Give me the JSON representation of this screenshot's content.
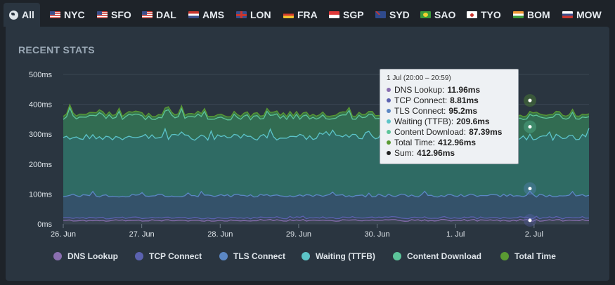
{
  "tabs": [
    {
      "label": "All",
      "icon": "globe-icon",
      "active": true
    },
    {
      "label": "NYC",
      "icon": "us-flag-icon"
    },
    {
      "label": "SFO",
      "icon": "us-flag-icon"
    },
    {
      "label": "DAL",
      "icon": "us-flag-icon"
    },
    {
      "label": "AMS",
      "icon": "nl-flag-icon"
    },
    {
      "label": "LON",
      "icon": "uk-flag-icon"
    },
    {
      "label": "FRA",
      "icon": "de-flag-icon"
    },
    {
      "label": "SGP",
      "icon": "sg-flag-icon"
    },
    {
      "label": "SYD",
      "icon": "au-flag-icon"
    },
    {
      "label": "SAO",
      "icon": "br-flag-icon"
    },
    {
      "label": "TYO",
      "icon": "jp-flag-icon"
    },
    {
      "label": "BOM",
      "icon": "in-flag-icon"
    },
    {
      "label": "MOW",
      "icon": "ru-flag-icon"
    }
  ],
  "section_title": "RECENT STATS",
  "tooltip": {
    "header": "1 Jul (20:00 – 20:59)",
    "rows": [
      {
        "label": "DNS Lookup:",
        "value": "11.96ms",
        "color": "#8a6fb0"
      },
      {
        "label": "TCP Connect:",
        "value": "8.81ms",
        "color": "#5b62b0"
      },
      {
        "label": "TLS Connect:",
        "value": "95.2ms",
        "color": "#5b87c4"
      },
      {
        "label": "Waiting (TTFB):",
        "value": "209.6ms",
        "color": "#5cc4c8"
      },
      {
        "label": "Content Download:",
        "value": "87.39ms",
        "color": "#5cc49a"
      },
      {
        "label": "Total Time:",
        "value": "412.96ms",
        "color": "#5a9a32"
      },
      {
        "label": "Sum:",
        "value": "412.96ms",
        "color": "#222222"
      }
    ]
  },
  "chart_data": {
    "type": "area",
    "stacked": true,
    "x_ticks": [
      "26. Jun",
      "27. Jun",
      "28. Jun",
      "29. Jun",
      "30. Jun",
      "1. Jul",
      "2. Jul"
    ],
    "y_ticks": [
      "0ms",
      "100ms",
      "200ms",
      "300ms",
      "400ms",
      "500ms"
    ],
    "ylim": [
      0,
      500
    ],
    "ylabel_unit": "ms",
    "grid": true,
    "legend_position": "bottom",
    "x_range_days": [
      0,
      6.7
    ],
    "series": [
      {
        "name": "DNS Lookup",
        "color": "#8a6fb0",
        "typical": 12
      },
      {
        "name": "TCP Connect",
        "color": "#5b62b0",
        "typical": 9
      },
      {
        "name": "TLS Connect",
        "color": "#5b87c4",
        "typical": 95
      },
      {
        "name": "Waiting (TTFB)",
        "color": "#5cc4c8",
        "typical": 200
      },
      {
        "name": "Content Download",
        "color": "#5cc49a",
        "typical": 70
      },
      {
        "name": "Total Time",
        "color": "#5a9a32",
        "typical": 370
      }
    ],
    "highlight": {
      "x_label": "1 Jul (20:00 – 20:59)",
      "values": [
        11.96,
        8.81,
        95.2,
        209.6,
        87.39,
        412.96
      ]
    }
  },
  "legend": [
    {
      "label": "DNS Lookup",
      "color": "#8a6fb0"
    },
    {
      "label": "TCP Connect",
      "color": "#5b62b0"
    },
    {
      "label": "TLS Connect",
      "color": "#5b87c4"
    },
    {
      "label": "Waiting (TTFB)",
      "color": "#5cc4c8"
    },
    {
      "label": "Content Download",
      "color": "#5cc49a"
    },
    {
      "label": "Total Time",
      "color": "#5a9a32"
    }
  ]
}
